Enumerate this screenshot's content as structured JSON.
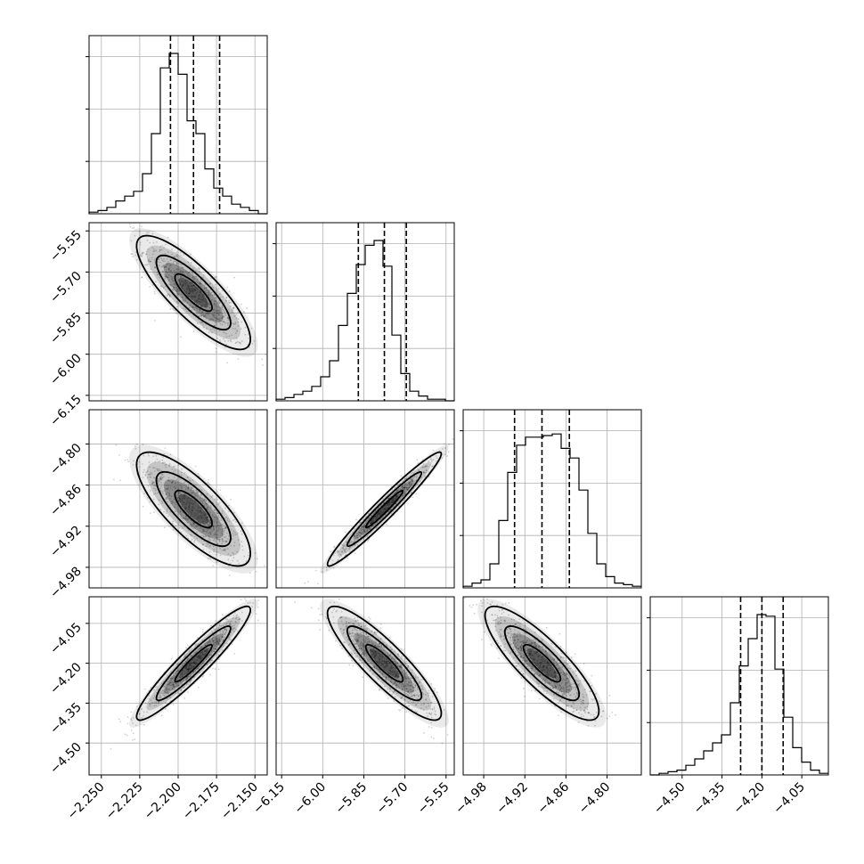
{
  "chart_data": {
    "type": "corner",
    "grid": true,
    "parameters": [
      {
        "range": [
          -2.258,
          -2.142
        ],
        "ticks": [
          -2.25,
          -2.225,
          -2.2,
          -2.175,
          -2.15
        ],
        "tick_labels": [
          "−2.250",
          "−2.225",
          "−2.200",
          "−2.175",
          "−2.150"
        ],
        "quantiles": [
          -2.205,
          -2.19,
          -2.173
        ]
      },
      {
        "range": [
          -6.17,
          -5.52
        ],
        "ticks": [
          -6.15,
          -6.0,
          -5.85,
          -5.7,
          -5.55
        ],
        "tick_labels": [
          "−6.15",
          "−6.00",
          "−5.85",
          "−5.70",
          "−5.55"
        ],
        "quantiles": [
          -5.87,
          -5.775,
          -5.695
        ]
      },
      {
        "range": [
          -5.01,
          -4.75
        ],
        "ticks": [
          -4.98,
          -4.92,
          -4.86,
          -4.8
        ],
        "tick_labels": [
          "−4.98",
          "−4.92",
          "−4.86",
          "−4.80"
        ],
        "quantiles": [
          -4.935,
          -4.895,
          -4.855
        ]
      },
      {
        "range": [
          -4.62,
          -3.95
        ],
        "ticks": [
          -4.5,
          -4.35,
          -4.2,
          -4.05
        ],
        "tick_labels": [
          "−4.50",
          "−4.35",
          "−4.20",
          "−4.05"
        ],
        "quantiles": [
          -4.28,
          -4.2,
          -4.12
        ]
      }
    ],
    "histograms": [
      [
        1,
        2,
        4,
        8,
        11,
        14,
        25,
        50,
        91,
        100,
        87,
        58,
        50,
        28,
        16,
        11,
        6,
        4,
        2,
        0
      ],
      [
        1,
        2,
        4,
        6,
        9,
        15,
        25,
        47,
        67,
        85,
        97,
        100,
        84,
        41,
        17,
        6,
        3,
        1,
        1,
        0
      ],
      [
        1,
        3,
        5,
        15,
        42,
        72,
        89,
        94,
        94,
        95,
        96,
        87,
        81,
        61,
        34,
        15,
        7,
        3,
        2,
        1
      ],
      [
        0,
        1,
        2,
        3,
        6,
        10,
        15,
        20,
        25,
        45,
        68,
        85,
        100,
        99,
        66,
        36,
        17,
        8,
        3,
        1
      ]
    ],
    "pairs": [
      {
        "x": 0,
        "y": 1,
        "mean": [
          -2.19,
          -5.775
        ],
        "corr": -0.82
      },
      {
        "x": 0,
        "y": 2,
        "mean": [
          -2.19,
          -4.895
        ],
        "corr": -0.78
      },
      {
        "x": 1,
        "y": 2,
        "mean": [
          -5.775,
          -4.895
        ],
        "corr": 0.97
      },
      {
        "x": 0,
        "y": 3,
        "mean": [
          -2.19,
          -4.2
        ],
        "corr": 0.94
      },
      {
        "x": 1,
        "y": 3,
        "mean": [
          -5.775,
          -4.2
        ],
        "corr": -0.88
      },
      {
        "x": 2,
        "y": 3,
        "mean": [
          -4.895,
          -4.2
        ],
        "corr": -0.84
      }
    ]
  }
}
